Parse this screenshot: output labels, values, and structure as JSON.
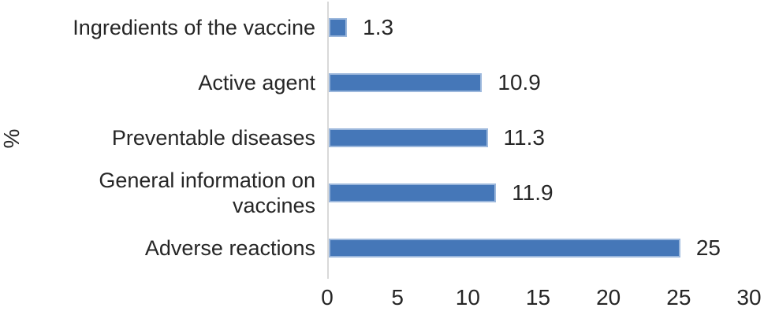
{
  "chart_data": {
    "type": "bar",
    "orientation": "horizontal",
    "title": "",
    "xlabel": "",
    "ylabel": "%",
    "categories": [
      "Ingredients of the vaccine",
      "Active agent",
      "Preventable diseases",
      "General information on vaccines",
      "Adverse reactions"
    ],
    "values": [
      1.3,
      10.9,
      11.3,
      11.9,
      25
    ],
    "data_labels": [
      "1.3",
      "10.9",
      "11.3",
      "11.9",
      "25"
    ],
    "xlim": [
      0,
      30
    ],
    "x_ticks": [
      0,
      5,
      10,
      15,
      20,
      25,
      30
    ],
    "grid": false,
    "legend": "none",
    "colors": {
      "bar_fill": "#4577b8",
      "bar_border": "#9bb7dc",
      "axis_line": "#d9d9d9",
      "text": "#262626",
      "background": "#ffffff"
    }
  }
}
